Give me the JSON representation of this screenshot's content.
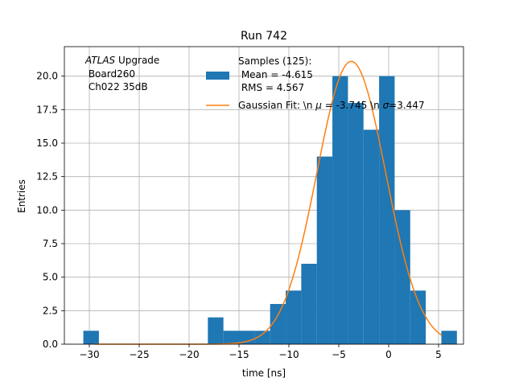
{
  "chart_data": {
    "type": "bar",
    "title": "Run 742",
    "xlabel": "time [ns]",
    "ylabel": "Entries",
    "xlim": [
      -32.5,
      7.5
    ],
    "ylim": [
      0,
      22.2
    ],
    "grid": true,
    "xticks": [
      -30,
      -25,
      -20,
      -15,
      -10,
      -5,
      0,
      5
    ],
    "xtick_labels": [
      "−30",
      "−25",
      "−20",
      "−15",
      "−10",
      "−5",
      "0",
      "5"
    ],
    "yticks": [
      0,
      2.5,
      5,
      7.5,
      10,
      12.5,
      15,
      17.5,
      20
    ],
    "ytick_labels": [
      "0.0",
      "2.5",
      "5.0",
      "7.5",
      "10.0",
      "12.5",
      "15.0",
      "17.5",
      "20.0"
    ],
    "bin_width": 1.56,
    "histogram": {
      "name": "Samples (125)",
      "color": "#1f77b4",
      "bin_edges": [
        -30.6,
        -29.04,
        -27.48,
        -25.92,
        -24.36,
        -22.8,
        -21.24,
        -19.68,
        -18.12,
        -16.56,
        -15.0,
        -13.44,
        -11.88,
        -10.32,
        -8.76,
        -7.2,
        -5.64,
        -4.08,
        -2.52,
        -0.96,
        0.6,
        2.16,
        3.72,
        5.28
      ],
      "counts": [
        1,
        0,
        0,
        0,
        0,
        0,
        0,
        0,
        2,
        1,
        1,
        1,
        3,
        4,
        6,
        14,
        20,
        18,
        16,
        20,
        10,
        4,
        0,
        1
      ]
    },
    "fit": {
      "name": "Gaussian Fit",
      "color": "#ff7f0e",
      "mu": -3.745,
      "sigma": 3.447,
      "amplitude": 21.1,
      "x_range": [
        -29.5,
        5.3
      ]
    },
    "annotation": {
      "line1_italic": "ATLAS",
      "line1_rest": " Upgrade",
      "line2": " Board260",
      "line3": " Ch022 35dB"
    },
    "legend": {
      "placement": "top-right",
      "hist_line1": "Samples (125):",
      "hist_line2": " Mean = -4.615",
      "hist_line3": " RMS = 4.567",
      "fit_prefix": "Gaussian Fit: \\n ",
      "fit_mu_symbol": "μ",
      "fit_mid": " = -3.745 \\n ",
      "fit_sigma_symbol": "σ",
      "fit_suffix": "=3.447"
    }
  }
}
